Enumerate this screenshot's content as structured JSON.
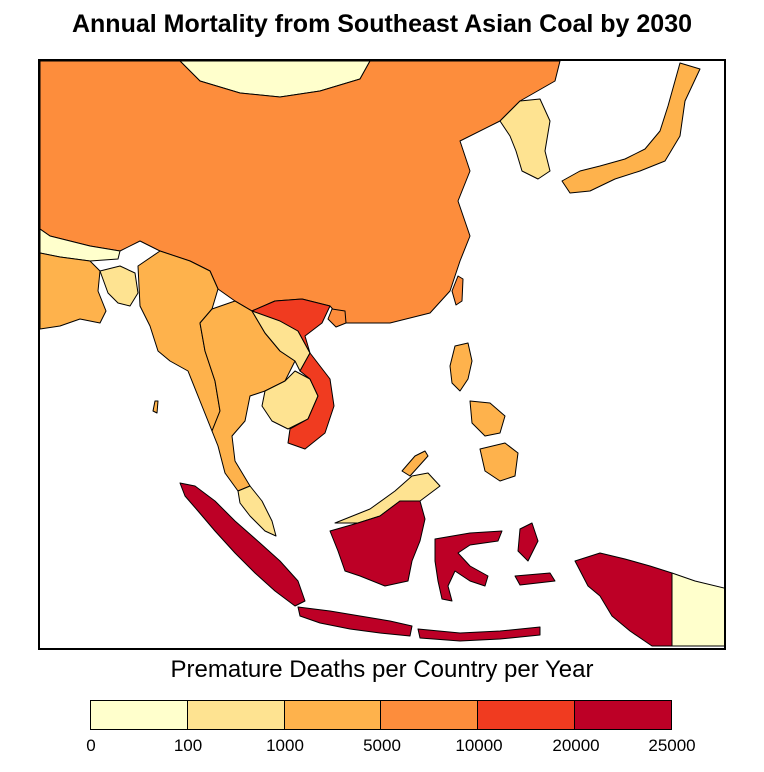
{
  "title": "Annual Mortality from Southeast Asian Coal by 2030",
  "legend": {
    "title": "Premature Deaths per Country per Year",
    "ticks": [
      "0",
      "100",
      "1000",
      "5000",
      "10000",
      "20000",
      "25000"
    ],
    "colors": [
      "#ffffcc",
      "#fee391",
      "#feb24c",
      "#fd8d3c",
      "#f03b20",
      "#bd0026"
    ]
  },
  "map_data": {
    "type": "choropleth",
    "region": "East and Southeast Asia",
    "bins": [
      {
        "range": "0–100",
        "countries": [
          "Mongolia",
          "Nepal/Bhutan",
          "Papua New Guinea"
        ]
      },
      {
        "range": "100–1000",
        "countries": [
          "Korea",
          "Myanmar-coast",
          "Malaysia",
          "Brunei",
          "Laos",
          "Cambodia"
        ]
      },
      {
        "range": "1000–5000",
        "countries": [
          "Japan",
          "Philippines",
          "Thailand",
          "Myanmar",
          "Bangladesh",
          "India (east)"
        ]
      },
      {
        "range": "5000–10000",
        "countries": [
          "China"
        ]
      },
      {
        "range": "10000–20000",
        "countries": [
          "Vietnam"
        ]
      },
      {
        "range": "20000–25000",
        "countries": [
          "Indonesia"
        ]
      }
    ]
  }
}
